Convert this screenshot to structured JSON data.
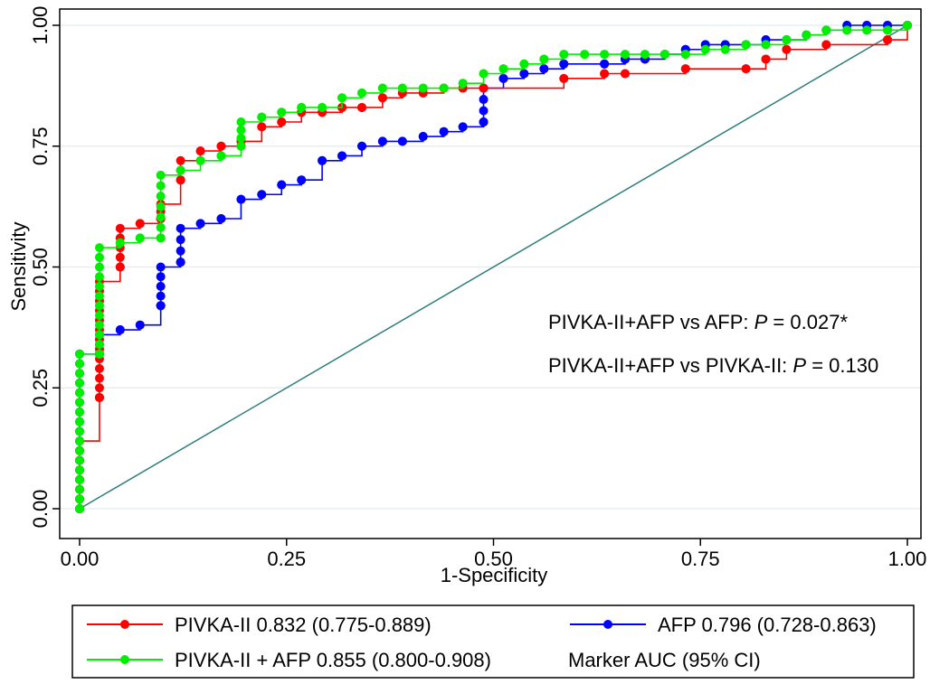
{
  "chart_data": {
    "type": "line",
    "xlabel": "1-Specificity",
    "ylabel": "Sensitivity",
    "xlim": [
      0,
      1
    ],
    "ylim": [
      0,
      1
    ],
    "grid": true,
    "x_ticks": [
      "0.00",
      "0.25",
      "0.50",
      "0.75",
      "1.00"
    ],
    "y_ticks": [
      "0.00",
      "0.25",
      "0.50",
      "0.75",
      "1.00"
    ],
    "reference_line": {
      "from": [
        0,
        0
      ],
      "to": [
        1,
        1
      ],
      "color": "#2e7d7d"
    },
    "annotations": [
      {
        "prefix": "PIVKA-II+AFP vs AFP: ",
        "stat": "P",
        "value": " = 0.027*"
      },
      {
        "prefix": "PIVKA-II+AFP vs PIVKA-II: ",
        "stat": "P",
        "value": " = 0.130"
      }
    ],
    "series": [
      {
        "name": "PIVKA-II",
        "legend": "PIVKA-II  0.832 (0.775-0.889)",
        "auc": 0.832,
        "ci": "0.775-0.889",
        "color": "#ff0000",
        "x": [
          0,
          0,
          0.024,
          0.024,
          0.049,
          0.049,
          0.073,
          0.098,
          0.098,
          0.122,
          0.122,
          0.146,
          0.171,
          0.195,
          0.22,
          0.244,
          0.268,
          0.293,
          0.317,
          0.341,
          0.366,
          0.39,
          0.415,
          0.44,
          0.463,
          0.488,
          0.585,
          0.634,
          0.659,
          0.732,
          0.805,
          0.829,
          0.854,
          0.902,
          0.976,
          1
        ],
        "y": [
          0,
          0.14,
          0.23,
          0.47,
          0.5,
          0.58,
          0.59,
          0.6,
          0.63,
          0.68,
          0.72,
          0.74,
          0.75,
          0.76,
          0.79,
          0.8,
          0.82,
          0.82,
          0.83,
          0.83,
          0.85,
          0.86,
          0.86,
          0.87,
          0.87,
          0.87,
          0.89,
          0.9,
          0.9,
          0.91,
          0.91,
          0.93,
          0.95,
          0.96,
          0.97,
          1
        ]
      },
      {
        "name": "AFP",
        "legend": "AFP 0.796 (0.728-0.863)",
        "auc": 0.796,
        "ci": "0.728-0.863",
        "color": "#0000ff",
        "x": [
          0,
          0,
          0.024,
          0.024,
          0.049,
          0.073,
          0.098,
          0.098,
          0.122,
          0.122,
          0.146,
          0.171,
          0.195,
          0.22,
          0.244,
          0.268,
          0.293,
          0.317,
          0.341,
          0.366,
          0.39,
          0.415,
          0.44,
          0.463,
          0.488,
          0.488,
          0.512,
          0.537,
          0.561,
          0.585,
          0.634,
          0.659,
          0.683,
          0.707,
          0.732,
          0.756,
          0.78,
          0.805,
          0.829,
          0.854,
          0.878,
          0.902,
          0.927,
          0.951,
          0.976,
          1
        ],
        "y": [
          0,
          0.32,
          0.32,
          0.36,
          0.37,
          0.38,
          0.42,
          0.5,
          0.51,
          0.58,
          0.59,
          0.6,
          0.64,
          0.65,
          0.67,
          0.68,
          0.72,
          0.73,
          0.75,
          0.76,
          0.76,
          0.77,
          0.78,
          0.79,
          0.8,
          0.87,
          0.89,
          0.9,
          0.91,
          0.92,
          0.92,
          0.93,
          0.93,
          0.94,
          0.95,
          0.96,
          0.96,
          0.96,
          0.97,
          0.97,
          0.98,
          0.99,
          1,
          1,
          1,
          1
        ]
      },
      {
        "name": "PIVKA-II + AFP",
        "legend": "PIVKA-II + AFP  0.855 (0.800-0.908)",
        "auc": 0.855,
        "ci": "0.800-0.908",
        "color": "#00ee00",
        "x": [
          0,
          0,
          0.024,
          0.024,
          0.049,
          0.073,
          0.098,
          0.098,
          0.122,
          0.146,
          0.171,
          0.195,
          0.195,
          0.22,
          0.244,
          0.268,
          0.293,
          0.317,
          0.341,
          0.366,
          0.39,
          0.415,
          0.44,
          0.463,
          0.488,
          0.512,
          0.537,
          0.561,
          0.585,
          0.61,
          0.634,
          0.659,
          0.683,
          0.707,
          0.732,
          0.756,
          0.78,
          0.805,
          0.829,
          0.854,
          0.878,
          0.902,
          0.927,
          0.951,
          0.976,
          1
        ],
        "y": [
          0,
          0.32,
          0.32,
          0.54,
          0.55,
          0.56,
          0.56,
          0.69,
          0.7,
          0.72,
          0.73,
          0.75,
          0.8,
          0.81,
          0.82,
          0.83,
          0.83,
          0.85,
          0.86,
          0.87,
          0.87,
          0.87,
          0.87,
          0.88,
          0.9,
          0.91,
          0.92,
          0.93,
          0.94,
          0.94,
          0.94,
          0.94,
          0.94,
          0.94,
          0.94,
          0.95,
          0.95,
          0.96,
          0.96,
          0.97,
          0.98,
          0.99,
          0.99,
          0.99,
          0.99,
          1
        ]
      }
    ],
    "legend_note": "Marker AUC (95% CI)",
    "legend_position": "bottom"
  }
}
